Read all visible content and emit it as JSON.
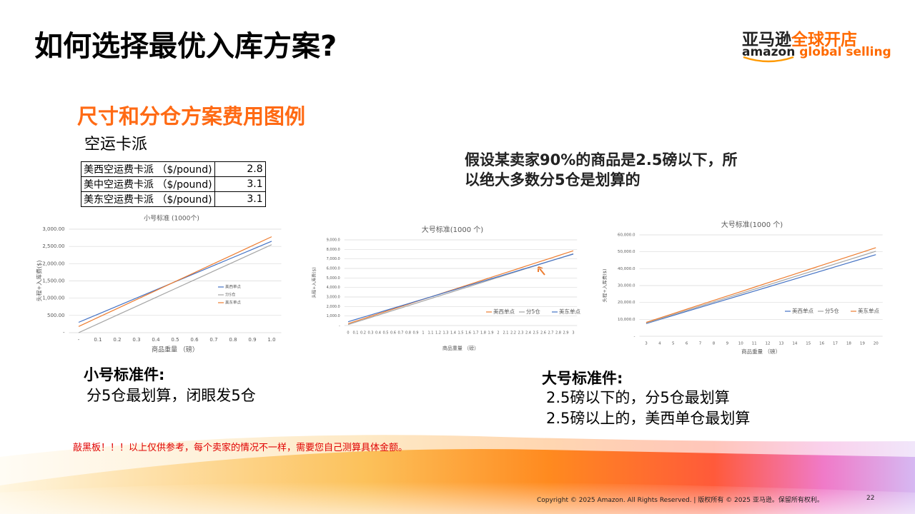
{
  "header": {
    "title": "如何选择最优入库方案?",
    "logo_cn_1": "亚马逊",
    "logo_cn_2": "全球开店",
    "logo_en_1": "amazon",
    "logo_en_2": "global selling"
  },
  "section": {
    "title": "尺寸和分仓方案费用图例",
    "subtitle": "空运卡派"
  },
  "table": {
    "rows": [
      [
        "美西空运费卡派 （$/pound)",
        "2.8"
      ],
      [
        "美中空运费卡派 （$/pound)",
        "3.1"
      ],
      [
        "美东空运费卡派 （$/pound)",
        "3.1"
      ]
    ]
  },
  "note": {
    "lines": [
      "假设某卖家90%的商品是2.5磅以下，所",
      "以绝大多数分5仓是划算的"
    ]
  },
  "small": {
    "heading": "小号标准件:",
    "lines": [
      "分5仓最划算，闭眼发5仓"
    ]
  },
  "large": {
    "heading": "大号标准件:",
    "lines": [
      "2.5磅以下的，分5仓最划算",
      "2.5磅以上的，美西单仓最划算"
    ]
  },
  "disclaimer": "敲黑板！！！以上仅供参考，每个卖家的情况不一样，需要您自己测算具体金额。",
  "footer": {
    "copyright": "Copyright © 2025 Amazon. All Rights Reserved. | 版权所有 © 2025 亚马逊。保留所有权利。",
    "page": "22"
  },
  "chart_data": [
    {
      "type": "line",
      "title": "小号标准 (1000个)",
      "x_label": "商品重量 （磅）",
      "y_label": "头程+入库费($)",
      "grid": true,
      "legend": "right",
      "categories": [
        "-",
        "0.1",
        "0.2",
        "0.3",
        "0.4",
        "0.5",
        "0.6",
        "0.7",
        "0.8",
        "0.9",
        "1.0"
      ],
      "ylim": [
        0,
        3000
      ],
      "yticks": [
        {
          "value": 0,
          "label": "-"
        },
        {
          "value": 500,
          "label": "500.00"
        },
        {
          "value": 1000,
          "label": "1,000.00"
        },
        {
          "value": 1500,
          "label": "1,500.00"
        },
        {
          "value": 2000,
          "label": "2,000.00"
        },
        {
          "value": 2500,
          "label": "2,500.00"
        },
        {
          "value": 3000,
          "label": "3,000.00"
        }
      ],
      "series": [
        {
          "name": "美西单点",
          "color": "#4472c4",
          "values": [
            300,
            535,
            770,
            1005,
            1240,
            1475,
            1710,
            1945,
            2180,
            2415,
            2650
          ]
        },
        {
          "name": "分5仓",
          "color": "#a5a5a5",
          "values": [
            0,
            255,
            510,
            765,
            1020,
            1275,
            1530,
            1785,
            2040,
            2295,
            2550
          ]
        },
        {
          "name": "美东单点",
          "color": "#ed7d31",
          "values": [
            180,
            440,
            700,
            960,
            1220,
            1480,
            1740,
            2000,
            2260,
            2520,
            2780
          ]
        }
      ]
    },
    {
      "type": "line",
      "title": "大号标准(1000 个)",
      "x_label": "商品重量 （磅）",
      "y_label": "头程+入库费($)",
      "grid": true,
      "legend": "bottom",
      "categories": [
        "0",
        "0.1",
        "0.2",
        "0.3",
        "0.4",
        "0.5",
        "0.6",
        "0.7",
        "0.8",
        "0.9",
        "1",
        "1.1",
        "1.2",
        "1.3",
        "1.4",
        "1.5",
        "1.6",
        "1.7",
        "1.8",
        "1.9",
        "2",
        "2.1",
        "2.2",
        "2.3",
        "2.4",
        "2.5",
        "2.6",
        "2.7",
        "2.8",
        "2.9",
        "3"
      ],
      "ylim": [
        0,
        9000
      ],
      "yticks": [
        {
          "value": 0,
          "label": "-"
        },
        {
          "value": 1000,
          "label": "1,000.0"
        },
        {
          "value": 2000,
          "label": "2,000.0"
        },
        {
          "value": 3000,
          "label": "3,000.0"
        },
        {
          "value": 4000,
          "label": "4,000.0"
        },
        {
          "value": 5000,
          "label": "5,000.0"
        },
        {
          "value": 6000,
          "label": "6,000.0"
        },
        {
          "value": 7000,
          "label": "7,000.0"
        },
        {
          "value": 8000,
          "label": "8,000.0"
        },
        {
          "value": 9000,
          "label": "9,000.0"
        }
      ],
      "series": [
        {
          "name": "美西单点",
          "color": "#ed7d31",
          "values": [
            200,
            455,
            710,
            965,
            1220,
            1475,
            1730,
            1985,
            2240,
            2495,
            2750,
            3005,
            3260,
            3515,
            3770,
            4025,
            4280,
            4535,
            4790,
            5045,
            5300,
            5555,
            5810,
            6065,
            6320,
            6575,
            6830,
            7085,
            7340,
            7595,
            7850
          ]
        },
        {
          "name": "分5仓",
          "color": "#a5a5a5",
          "values": [
            100,
            348,
            596,
            844,
            1092,
            1340,
            1588,
            1836,
            2084,
            2332,
            2580,
            2828,
            3076,
            3324,
            3572,
            3820,
            4068,
            4316,
            4564,
            4812,
            5060,
            5308,
            5556,
            5804,
            6052,
            6300,
            6548,
            6796,
            7044,
            7292,
            7540
          ]
        },
        {
          "name": "美东单点",
          "color": "#4472c4",
          "values": [
            400,
            637,
            874,
            1111,
            1348,
            1585,
            1822,
            2059,
            2296,
            2533,
            2770,
            3007,
            3244,
            3481,
            3718,
            3955,
            4192,
            4429,
            4666,
            4903,
            5140,
            5377,
            5614,
            5851,
            6088,
            6325,
            6562,
            6799,
            7036,
            7273,
            7510
          ]
        }
      ]
    },
    {
      "type": "line",
      "title": "大号标准(1000 个)",
      "x_label": "商品重量 （磅）",
      "y_label": "头程+入库费($)",
      "grid": true,
      "legend": "bottom",
      "categories": [
        "3",
        "4",
        "5",
        "6",
        "7",
        "8",
        "9",
        "10",
        "11",
        "12",
        "13",
        "14",
        "15",
        "16",
        "17",
        "18",
        "19",
        "20"
      ],
      "ylim": [
        0,
        60000
      ],
      "yticks": [
        {
          "value": 0,
          "label": "-"
        },
        {
          "value": 10000,
          "label": "10,000.0"
        },
        {
          "value": 20000,
          "label": "20,000.0"
        },
        {
          "value": 30000,
          "label": "30,000.0"
        },
        {
          "value": 40000,
          "label": "40,000.0"
        },
        {
          "value": 50000,
          "label": "50,000.0"
        },
        {
          "value": 60000,
          "label": "60,000.0"
        }
      ],
      "series": [
        {
          "name": "美西单点",
          "color": "#4472c4",
          "values": [
            7500,
            9900,
            12300,
            14700,
            17100,
            19500,
            21900,
            24300,
            26700,
            29100,
            31500,
            33900,
            36300,
            38700,
            41100,
            43500,
            45900,
            48300
          ]
        },
        {
          "name": "分5仓",
          "color": "#a5a5a5",
          "values": [
            7800,
            10300,
            12800,
            15300,
            17800,
            20300,
            22800,
            25300,
            27800,
            30300,
            32800,
            35300,
            37800,
            40300,
            42800,
            45300,
            47800,
            50300
          ]
        },
        {
          "name": "美东单点",
          "color": "#ed7d31",
          "values": [
            8200,
            10800,
            13400,
            16000,
            18600,
            21200,
            23800,
            26400,
            29000,
            31600,
            34200,
            36800,
            39400,
            42000,
            44600,
            47200,
            49800,
            52400
          ]
        }
      ]
    }
  ]
}
